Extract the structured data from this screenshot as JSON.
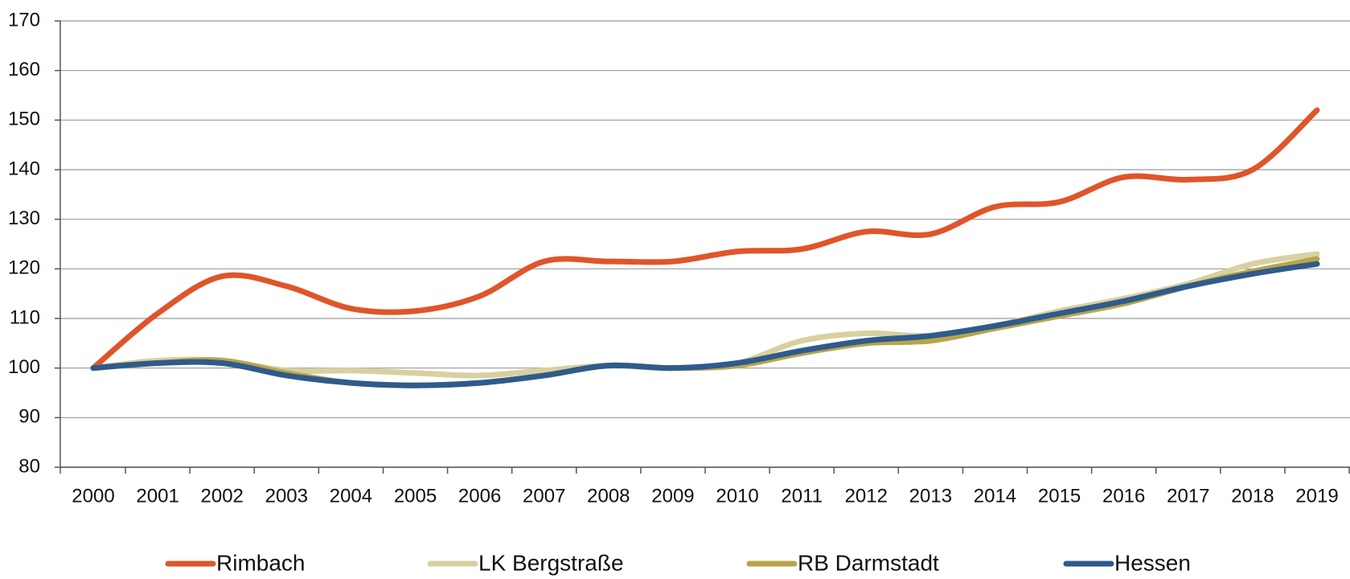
{
  "chart_data": {
    "type": "line",
    "categories": [
      "2000",
      "2001",
      "2002",
      "2003",
      "2004",
      "2005",
      "2006",
      "2007",
      "2008",
      "2009",
      "2010",
      "2011",
      "2012",
      "2013",
      "2014",
      "2015",
      "2016",
      "2017",
      "2018",
      "2019"
    ],
    "series": [
      {
        "name": "Rimbach",
        "color": "#e0552a",
        "values": [
          100,
          111,
          118.5,
          116.5,
          112,
          111.5,
          114.5,
          121.5,
          121.5,
          121.5,
          123.5,
          124,
          127.5,
          127,
          132.5,
          133.5,
          138.5,
          138,
          140,
          152
        ]
      },
      {
        "name": "LK Bergstraße",
        "color": "#d8d0a0",
        "values": [
          100,
          101.5,
          101.5,
          99.5,
          99.5,
          99,
          98.5,
          99.5,
          100.5,
          100,
          101,
          105.5,
          107,
          106.5,
          108.5,
          111.5,
          114,
          117,
          121,
          123
        ]
      },
      {
        "name": "RB Darmstadt",
        "color": "#b8a548",
        "values": [
          100,
          101,
          101.5,
          99,
          97,
          96.5,
          97,
          98.5,
          100.5,
          100,
          100.5,
          103,
          105,
          105.5,
          108,
          110.5,
          113,
          116.5,
          119.5,
          122
        ]
      },
      {
        "name": "Hessen",
        "color": "#2f5b8c",
        "values": [
          100,
          101,
          101,
          98.5,
          97,
          96.5,
          97,
          98.5,
          100.5,
          100,
          101,
          103.5,
          105.5,
          106.5,
          108.5,
          111,
          113.5,
          116.5,
          119,
          121
        ]
      }
    ],
    "ylim": [
      80,
      170
    ],
    "yticks": [
      80,
      90,
      100,
      110,
      120,
      130,
      140,
      150,
      160,
      170
    ],
    "grid": true,
    "legend": "bottom"
  }
}
